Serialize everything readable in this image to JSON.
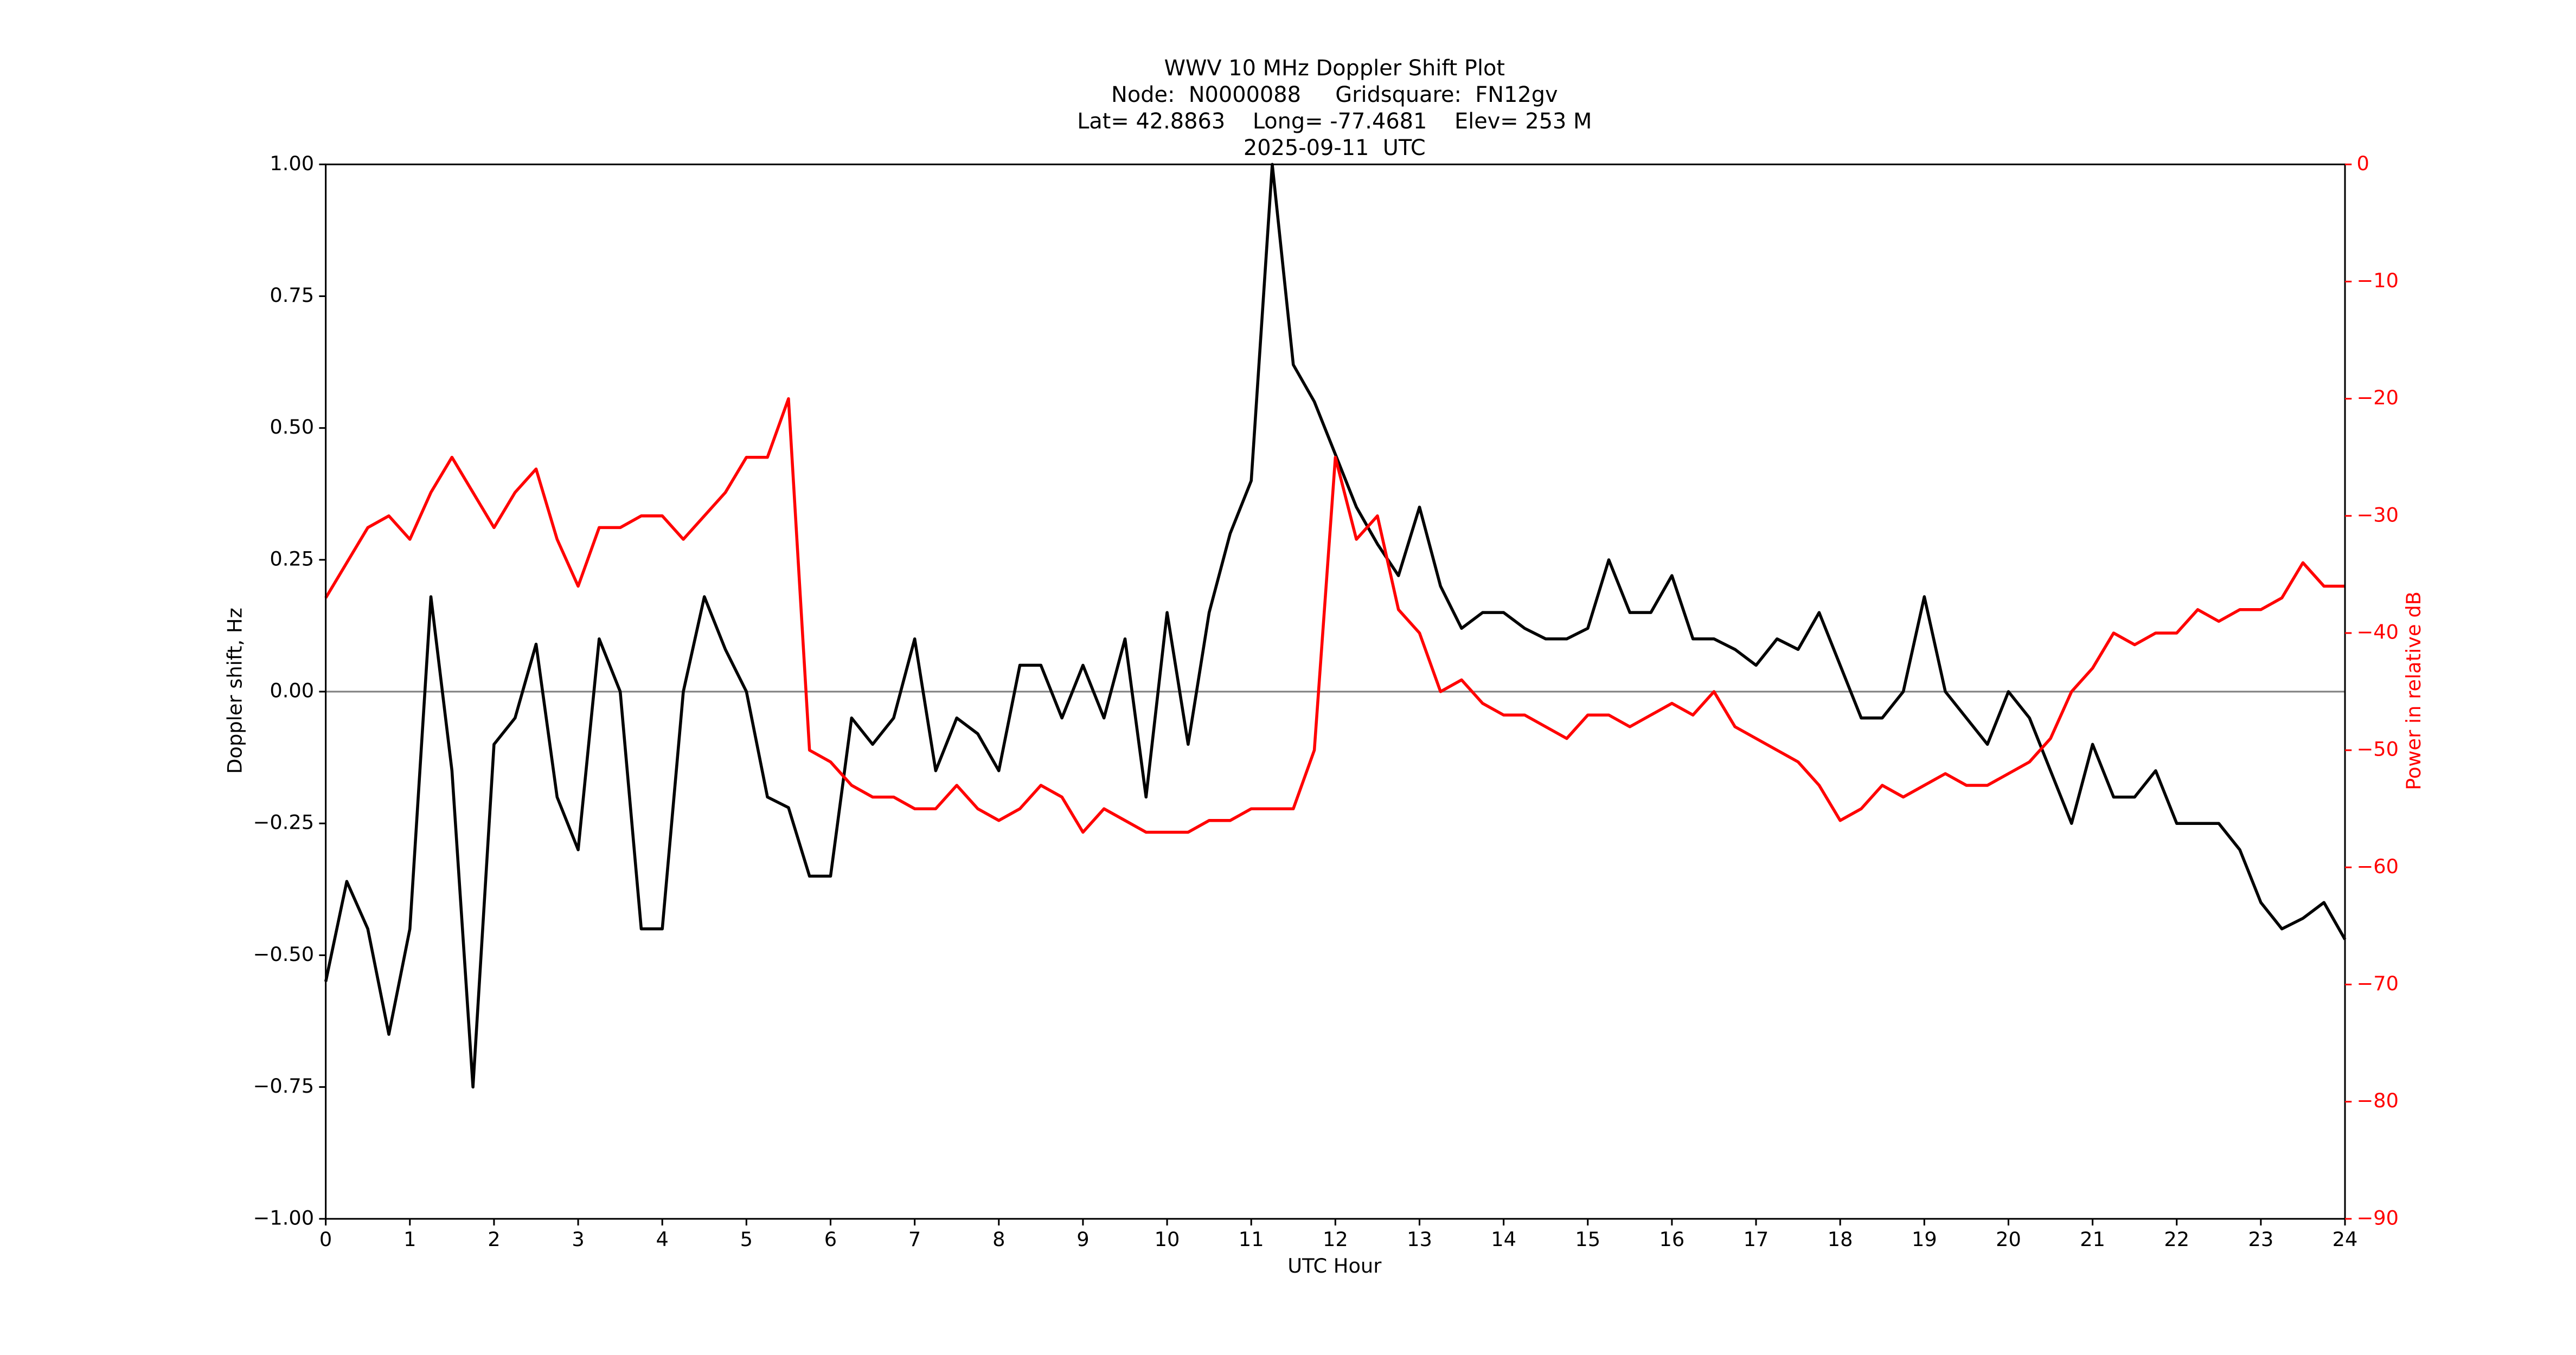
{
  "chart_data": {
    "type": "line",
    "title": [
      "WWV 10 MHz Doppler Shift Plot",
      "Node:  N0000088     Gridsquare:  FN12gv",
      "Lat= 42.8863    Long= -77.4681    Elev= 253 M",
      "2025-09-11  UTC"
    ],
    "xlabel": "UTC Hour",
    "ylabel": "Doppler shift, Hz",
    "y2label": "Power in relative dB",
    "xlim": [
      0,
      24
    ],
    "xticks": [
      0,
      1,
      2,
      3,
      4,
      5,
      6,
      7,
      8,
      9,
      10,
      11,
      12,
      13,
      14,
      15,
      16,
      17,
      18,
      19,
      20,
      21,
      22,
      23,
      24
    ],
    "ylim": [
      -1,
      1
    ],
    "yticks": [
      {
        "value": -1,
        "label": "−1.00"
      },
      {
        "value": -0.75,
        "label": "−0.75"
      },
      {
        "value": -0.5,
        "label": "−0.50"
      },
      {
        "value": -0.25,
        "label": "−0.25"
      },
      {
        "value": 0,
        "label": "0.00"
      },
      {
        "value": 0.25,
        "label": "0.25"
      },
      {
        "value": 0.5,
        "label": "0.50"
      },
      {
        "value": 0.75,
        "label": "0.75"
      },
      {
        "value": 1,
        "label": "1.00"
      }
    ],
    "y2lim": [
      -90,
      0
    ],
    "y2ticks": [
      {
        "value": -90,
        "label": "−90"
      },
      {
        "value": -80,
        "label": "−80"
      },
      {
        "value": -70,
        "label": "−70"
      },
      {
        "value": -60,
        "label": "−60"
      },
      {
        "value": -50,
        "label": "−50"
      },
      {
        "value": -40,
        "label": "−40"
      },
      {
        "value": -30,
        "label": "−30"
      },
      {
        "value": -20,
        "label": "−20"
      },
      {
        "value": -10,
        "label": "−10"
      },
      0
    ],
    "y2color": "#ff0000",
    "axhline": 0,
    "x": [
      0,
      0.25,
      0.5,
      0.75,
      1,
      1.25,
      1.5,
      1.75,
      2,
      2.25,
      2.5,
      2.75,
      3,
      3.25,
      3.5,
      3.75,
      4,
      4.25,
      4.5,
      4.75,
      5,
      5.25,
      5.5,
      5.75,
      6,
      6.25,
      6.5,
      6.75,
      7,
      7.25,
      7.5,
      7.75,
      8,
      8.25,
      8.5,
      8.75,
      9,
      9.25,
      9.5,
      9.75,
      10,
      10.25,
      10.5,
      10.75,
      11,
      11.25,
      11.5,
      11.75,
      12,
      12.25,
      12.5,
      12.75,
      13,
      13.25,
      13.5,
      13.75,
      14,
      14.25,
      14.5,
      14.75,
      15,
      15.25,
      15.5,
      15.75,
      16,
      16.25,
      16.5,
      16.75,
      17,
      17.25,
      17.5,
      17.75,
      18,
      18.25,
      18.5,
      18.75,
      19,
      19.25,
      19.5,
      19.75,
      20,
      20.25,
      20.5,
      20.75,
      21,
      21.25,
      21.5,
      21.75,
      22,
      22.25,
      22.5,
      22.75,
      23,
      23.25,
      23.5,
      23.75,
      24
    ],
    "series": [
      {
        "name": "Doppler shift",
        "color": "#000000",
        "axis": "y",
        "values": [
          -0.55,
          -0.36,
          -0.45,
          -0.65,
          -0.45,
          0.18,
          -0.15,
          -0.75,
          -0.1,
          -0.05,
          0.09,
          -0.2,
          -0.3,
          0.1,
          0.0,
          -0.45,
          -0.45,
          0.0,
          0.18,
          0.08,
          0.0,
          -0.2,
          -0.22,
          -0.35,
          -0.35,
          -0.05,
          -0.1,
          -0.05,
          0.1,
          -0.15,
          -0.05,
          -0.08,
          -0.15,
          0.05,
          0.05,
          -0.05,
          0.05,
          -0.05,
          0.1,
          -0.2,
          0.15,
          -0.1,
          0.15,
          0.3,
          0.4,
          1.0,
          0.62,
          0.55,
          0.45,
          0.35,
          0.28,
          0.22,
          0.35,
          0.2,
          0.12,
          0.15,
          0.15,
          0.12,
          0.1,
          0.1,
          0.12,
          0.25,
          0.15,
          0.15,
          0.22,
          0.1,
          0.1,
          0.08,
          0.05,
          0.1,
          0.08,
          0.15,
          0.05,
          -0.05,
          -0.05,
          0.0,
          0.18,
          0.0,
          -0.05,
          -0.1,
          0.0,
          -0.05,
          -0.15,
          -0.25,
          -0.1,
          -0.2,
          -0.2,
          -0.15,
          -0.25,
          -0.25,
          -0.25,
          -0.3,
          -0.4,
          -0.45,
          -0.43,
          -0.4,
          -0.47
        ]
      },
      {
        "name": "Power",
        "color": "#ff0000",
        "axis": "y2",
        "values": [
          -37,
          -34,
          -31,
          -30,
          -32,
          -28,
          -25,
          -28,
          -31,
          -28,
          -26,
          -32,
          -36,
          -31,
          -31,
          -30,
          -30,
          -32,
          -30,
          -28,
          -25,
          -25,
          -20,
          -50,
          -51,
          -53,
          -54,
          -54,
          -55,
          -55,
          -53,
          -55,
          -56,
          -55,
          -53,
          -54,
          -57,
          -55,
          -56,
          -57,
          -57,
          -57,
          -56,
          -56,
          -55,
          -55,
          -55,
          -50,
          -25,
          -32,
          -30,
          -38,
          -40,
          -45,
          -44,
          -46,
          -47,
          -47,
          -48,
          -49,
          -47,
          -47,
          -48,
          -47,
          -46,
          -47,
          -45,
          -48,
          -49,
          -50,
          -51,
          -53,
          -56,
          -55,
          -53,
          -54,
          -53,
          -52,
          -53,
          -53,
          -52,
          -51,
          -49,
          -45,
          -43,
          -40,
          -41,
          -40,
          -40,
          -38,
          -39,
          -38,
          -38,
          -37,
          -34,
          -36,
          -36
        ]
      }
    ]
  }
}
